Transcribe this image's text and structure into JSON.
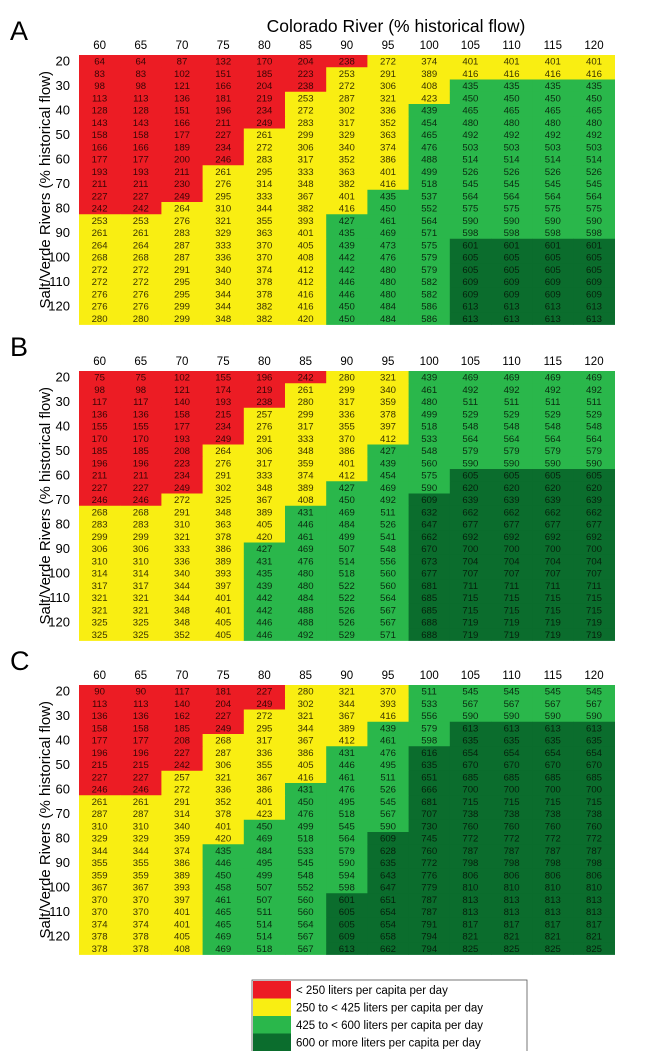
{
  "title": "Colorado River (% historical flow)",
  "ylabel": "Salt/Verde Rivers (% historical flow)",
  "colors": {
    "red": "#ec1c24",
    "yellow": "#f9ee12",
    "light_green": "#2ab74b",
    "dark_green": "#0b6d2d"
  },
  "chart_data": [
    {
      "type": "heatmap",
      "panel": "A",
      "columns": [
        "60",
        "65",
        "70",
        "75",
        "80",
        "85",
        "90",
        "95",
        "100",
        "105",
        "110",
        "115",
        "120"
      ],
      "row_tick_labels": [
        "20",
        "30",
        "40",
        "50",
        "60",
        "70",
        "80",
        "90",
        "100",
        "110",
        "120"
      ],
      "values": [
        [
          64,
          64,
          87,
          132,
          170,
          204,
          238,
          272,
          374,
          401,
          401,
          401,
          401
        ],
        [
          83,
          83,
          102,
          151,
          185,
          223,
          253,
          291,
          389,
          416,
          416,
          416,
          416
        ],
        [
          98,
          98,
          121,
          166,
          204,
          238,
          272,
          306,
          408,
          435,
          435,
          435,
          435
        ],
        [
          113,
          113,
          136,
          181,
          219,
          253,
          287,
          321,
          423,
          450,
          450,
          450,
          450
        ],
        [
          128,
          128,
          151,
          196,
          234,
          272,
          302,
          336,
          439,
          465,
          465,
          465,
          465
        ],
        [
          143,
          143,
          166,
          211,
          249,
          283,
          317,
          352,
          454,
          480,
          480,
          480,
          480
        ],
        [
          158,
          158,
          177,
          227,
          261,
          299,
          329,
          363,
          465,
          492,
          492,
          492,
          492
        ],
        [
          166,
          166,
          189,
          234,
          272,
          306,
          340,
          374,
          476,
          503,
          503,
          503,
          503
        ],
        [
          177,
          177,
          200,
          246,
          283,
          317,
          352,
          386,
          488,
          514,
          514,
          514,
          514
        ],
        [
          193,
          193,
          211,
          261,
          295,
          333,
          363,
          401,
          499,
          526,
          526,
          526,
          526
        ],
        [
          211,
          211,
          230,
          276,
          314,
          348,
          382,
          416,
          518,
          545,
          545,
          545,
          545
        ],
        [
          227,
          227,
          249,
          295,
          333,
          367,
          401,
          435,
          537,
          564,
          564,
          564,
          564
        ],
        [
          242,
          242,
          264,
          310,
          344,
          382,
          416,
          450,
          552,
          575,
          575,
          575,
          575
        ],
        [
          253,
          253,
          276,
          321,
          355,
          393,
          427,
          461,
          564,
          590,
          590,
          590,
          590
        ],
        [
          261,
          261,
          283,
          329,
          363,
          401,
          435,
          469,
          571,
          598,
          598,
          598,
          598
        ],
        [
          264,
          264,
          287,
          333,
          370,
          405,
          439,
          473,
          575,
          601,
          601,
          601,
          601
        ],
        [
          268,
          268,
          287,
          336,
          370,
          408,
          442,
          476,
          579,
          605,
          605,
          605,
          605
        ],
        [
          272,
          272,
          291,
          340,
          374,
          412,
          442,
          480,
          579,
          605,
          605,
          605,
          605
        ],
        [
          272,
          272,
          295,
          340,
          378,
          412,
          446,
          480,
          582,
          609,
          609,
          609,
          609
        ],
        [
          276,
          276,
          295,
          344,
          378,
          416,
          446,
          480,
          582,
          609,
          609,
          609,
          609
        ],
        [
          276,
          276,
          299,
          344,
          382,
          416,
          450,
          484,
          586,
          613,
          613,
          613,
          613
        ],
        [
          280,
          280,
          299,
          348,
          382,
          420,
          450,
          484,
          586,
          613,
          613,
          613,
          613
        ]
      ]
    },
    {
      "type": "heatmap",
      "panel": "B",
      "columns": [
        "60",
        "65",
        "70",
        "75",
        "80",
        "85",
        "90",
        "95",
        "100",
        "105",
        "110",
        "115",
        "120"
      ],
      "row_tick_labels": [
        "20",
        "30",
        "40",
        "50",
        "60",
        "70",
        "80",
        "90",
        "100",
        "110",
        "120"
      ],
      "values": [
        [
          75,
          75,
          102,
          155,
          196,
          242,
          280,
          321,
          439,
          469,
          469,
          469,
          469
        ],
        [
          98,
          98,
          121,
          174,
          219,
          261,
          299,
          340,
          461,
          492,
          492,
          492,
          492
        ],
        [
          117,
          117,
          140,
          193,
          238,
          280,
          317,
          359,
          480,
          511,
          511,
          511,
          511
        ],
        [
          136,
          136,
          158,
          215,
          257,
          299,
          336,
          378,
          499,
          529,
          529,
          529,
          529
        ],
        [
          155,
          155,
          177,
          234,
          276,
          317,
          355,
          397,
          518,
          548,
          548,
          548,
          548
        ],
        [
          170,
          170,
          193,
          249,
          291,
          333,
          370,
          412,
          533,
          564,
          564,
          564,
          564
        ],
        [
          185,
          185,
          208,
          264,
          306,
          348,
          386,
          427,
          548,
          579,
          579,
          579,
          579
        ],
        [
          196,
          196,
          223,
          276,
          317,
          359,
          401,
          439,
          560,
          590,
          590,
          590,
          590
        ],
        [
          211,
          211,
          234,
          291,
          333,
          374,
          412,
          454,
          575,
          605,
          605,
          605,
          605
        ],
        [
          227,
          227,
          249,
          302,
          348,
          389,
          427,
          469,
          590,
          620,
          620,
          620,
          620
        ],
        [
          246,
          246,
          272,
          325,
          367,
          408,
          450,
          492,
          609,
          639,
          639,
          639,
          639
        ],
        [
          268,
          268,
          291,
          348,
          389,
          431,
          469,
          511,
          632,
          662,
          662,
          662,
          662
        ],
        [
          283,
          283,
          310,
          363,
          405,
          446,
          484,
          526,
          647,
          677,
          677,
          677,
          677
        ],
        [
          299,
          299,
          321,
          378,
          420,
          461,
          499,
          541,
          662,
          692,
          692,
          692,
          692
        ],
        [
          306,
          306,
          333,
          386,
          427,
          469,
          507,
          548,
          670,
          700,
          700,
          700,
          700
        ],
        [
          310,
          310,
          336,
          389,
          431,
          476,
          514,
          556,
          673,
          704,
          704,
          704,
          704
        ],
        [
          314,
          314,
          340,
          393,
          435,
          480,
          518,
          560,
          677,
          707,
          707,
          707,
          707
        ],
        [
          317,
          317,
          344,
          397,
          439,
          480,
          522,
          560,
          681,
          711,
          711,
          711,
          711
        ],
        [
          321,
          321,
          344,
          401,
          442,
          484,
          522,
          564,
          685,
          715,
          715,
          715,
          715
        ],
        [
          321,
          321,
          348,
          401,
          442,
          488,
          526,
          567,
          685,
          715,
          715,
          715,
          715
        ],
        [
          325,
          325,
          348,
          405,
          446,
          488,
          526,
          567,
          688,
          719,
          719,
          719,
          719
        ],
        [
          325,
          325,
          352,
          405,
          446,
          492,
          529,
          571,
          688,
          719,
          719,
          719,
          719
        ]
      ]
    },
    {
      "type": "heatmap",
      "panel": "C",
      "columns": [
        "60",
        "65",
        "70",
        "75",
        "80",
        "85",
        "90",
        "95",
        "100",
        "105",
        "110",
        "115",
        "120"
      ],
      "row_tick_labels": [
        "20",
        "30",
        "40",
        "50",
        "60",
        "70",
        "80",
        "90",
        "100",
        "110",
        "120"
      ],
      "values": [
        [
          90,
          90,
          117,
          181,
          227,
          280,
          321,
          370,
          511,
          545,
          545,
          545,
          545
        ],
        [
          113,
          113,
          140,
          204,
          249,
          302,
          344,
          393,
          533,
          567,
          567,
          567,
          567
        ],
        [
          136,
          136,
          162,
          227,
          272,
          321,
          367,
          416,
          556,
          590,
          590,
          590,
          590
        ],
        [
          158,
          158,
          185,
          249,
          295,
          344,
          389,
          439,
          579,
          613,
          613,
          613,
          613
        ],
        [
          177,
          177,
          208,
          268,
          317,
          367,
          412,
          461,
          598,
          635,
          635,
          635,
          635
        ],
        [
          196,
          196,
          227,
          287,
          336,
          386,
          431,
          476,
          616,
          654,
          654,
          654,
          654
        ],
        [
          215,
          215,
          242,
          306,
          355,
          405,
          446,
          495,
          635,
          670,
          670,
          670,
          670
        ],
        [
          227,
          227,
          257,
          321,
          367,
          416,
          461,
          511,
          651,
          685,
          685,
          685,
          685
        ],
        [
          246,
          246,
          272,
          336,
          386,
          431,
          476,
          526,
          666,
          700,
          700,
          700,
          700
        ],
        [
          261,
          261,
          291,
          352,
          401,
          450,
          495,
          545,
          681,
          715,
          715,
          715,
          715
        ],
        [
          287,
          287,
          314,
          378,
          423,
          476,
          518,
          567,
          707,
          738,
          738,
          738,
          738
        ],
        [
          310,
          310,
          340,
          401,
          450,
          499,
          545,
          590,
          730,
          760,
          760,
          760,
          760
        ],
        [
          329,
          329,
          359,
          420,
          469,
          518,
          564,
          609,
          745,
          772,
          772,
          772,
          772
        ],
        [
          344,
          344,
          374,
          435,
          484,
          533,
          579,
          628,
          760,
          787,
          787,
          787,
          787
        ],
        [
          355,
          355,
          386,
          446,
          495,
          545,
          590,
          635,
          772,
          798,
          798,
          798,
          798
        ],
        [
          359,
          359,
          389,
          450,
          499,
          548,
          594,
          643,
          776,
          806,
          806,
          806,
          806
        ],
        [
          367,
          367,
          393,
          458,
          507,
          552,
          598,
          647,
          779,
          810,
          810,
          810,
          810
        ],
        [
          370,
          370,
          397,
          461,
          507,
          560,
          601,
          651,
          787,
          813,
          813,
          813,
          813
        ],
        [
          370,
          370,
          401,
          465,
          511,
          560,
          605,
          654,
          787,
          813,
          813,
          813,
          813
        ],
        [
          374,
          374,
          401,
          465,
          514,
          564,
          605,
          654,
          791,
          817,
          817,
          817,
          817
        ],
        [
          378,
          378,
          405,
          469,
          514,
          567,
          609,
          658,
          794,
          821,
          821,
          821,
          821
        ],
        [
          378,
          378,
          408,
          469,
          518,
          567,
          613,
          662,
          794,
          825,
          825,
          825,
          825
        ]
      ]
    }
  ],
  "legend": [
    {
      "label": "< 250 liters per capita per day",
      "color": "#ec1c24"
    },
    {
      "label": "250 to < 425 liters per capita per day",
      "color": "#f9ee12"
    },
    {
      "label": "425 to < 600 liters per capita per day",
      "color": "#2ab74b"
    },
    {
      "label": "600 or more liters per capita per day",
      "color": "#0b6d2d"
    }
  ]
}
